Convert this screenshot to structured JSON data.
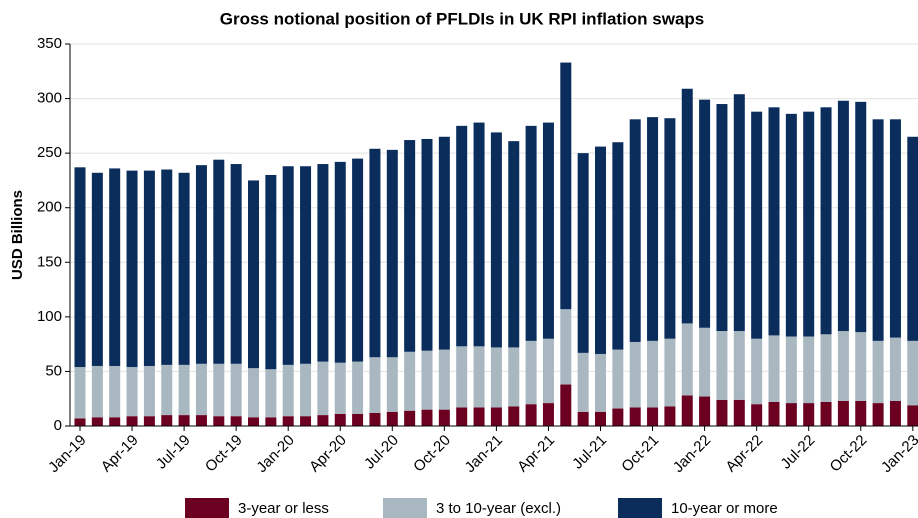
{
  "chart_data": {
    "type": "stacked_bar",
    "title": "Gross notional position of PFLDIs in UK RPI inflation swaps",
    "y_label": "USD Billions",
    "categories": [
      "Jan-19",
      null,
      null,
      "Apr-19",
      null,
      null,
      "Jul-19",
      null,
      null,
      "Oct-19",
      null,
      null,
      "Jan-20",
      null,
      null,
      "Apr-20",
      null,
      null,
      "Jul-20",
      null,
      null,
      "Oct-20",
      null,
      null,
      "Jan-21",
      null,
      null,
      "Apr-21",
      null,
      null,
      "Jul-21",
      null,
      null,
      "Oct-21",
      null,
      null,
      "Jan-22",
      null,
      null,
      "Apr-22",
      null,
      null,
      "Jul-22",
      null,
      null,
      "Oct-22",
      null,
      null,
      "Jan-23"
    ],
    "series": [
      {
        "name": "3-year or less",
        "color": "#6b0020",
        "values": [
          7,
          8,
          8,
          9,
          9,
          10,
          10,
          10,
          9,
          9,
          8,
          8,
          9,
          9,
          10,
          11,
          11,
          12,
          13,
          14,
          15,
          15,
          17,
          17,
          17,
          18,
          20,
          21,
          38,
          13,
          13,
          16,
          17,
          17,
          18,
          28,
          27,
          24,
          24,
          20,
          22,
          21,
          21,
          22,
          23,
          23,
          21,
          23,
          19
        ]
      },
      {
        "name": "3 to 10-year (excl.)",
        "color": "#a9b7c0",
        "values": [
          47,
          47,
          47,
          45,
          46,
          46,
          46,
          47,
          48,
          48,
          45,
          44,
          47,
          48,
          49,
          47,
          48,
          51,
          50,
          54,
          54,
          55,
          56,
          56,
          55,
          54,
          58,
          59,
          69,
          54,
          53,
          54,
          60,
          61,
          62,
          66,
          63,
          63,
          63,
          60,
          61,
          61,
          61,
          62,
          64,
          63,
          57,
          58,
          59
        ]
      },
      {
        "name": "10-year or more",
        "color": "#0a2d5c",
        "values": [
          183,
          177,
          181,
          180,
          179,
          179,
          176,
          182,
          187,
          183,
          172,
          178,
          182,
          181,
          181,
          184,
          186,
          191,
          190,
          194,
          194,
          195,
          202,
          205,
          197,
          189,
          197,
          198,
          226,
          183,
          190,
          190,
          204,
          205,
          202,
          215,
          209,
          208,
          217,
          208,
          209,
          204,
          206,
          208,
          211,
          211,
          203,
          200,
          187
        ]
      }
    ],
    "ylim": [
      0,
      350
    ],
    "yticks": [
      0,
      50,
      100,
      150,
      200,
      250,
      300,
      350
    ],
    "grid": true,
    "legend": "bottom"
  }
}
